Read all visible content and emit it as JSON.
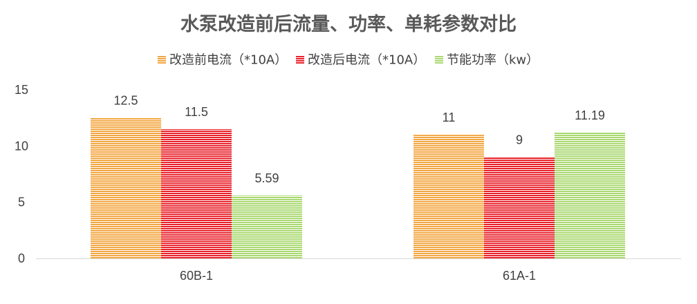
{
  "chart_data": {
    "type": "bar",
    "title": "水泵改造前后流量、功率、单耗参数对比",
    "categories": [
      "60B-1",
      "61A-1"
    ],
    "series": [
      {
        "name": "改造前电流（*10A）",
        "values": [
          12.5,
          11
        ],
        "color": "#F2A641"
      },
      {
        "name": "改造后电流（*10A）",
        "values": [
          11.5,
          9
        ],
        "color": "#E8202A"
      },
      {
        "name": "节能功率（kw）",
        "values": [
          5.59,
          11.19
        ],
        "color": "#A9D870"
      }
    ],
    "ylim": [
      0,
      15
    ],
    "yticks": [
      0,
      5,
      10,
      15
    ],
    "data_labels": [
      [
        "12.5",
        "11"
      ],
      [
        "11.5",
        "9"
      ],
      [
        "5.59",
        "11.19"
      ]
    ],
    "legend_position": "top",
    "grid": false,
    "bar_pattern": "horizontal-stripes"
  }
}
